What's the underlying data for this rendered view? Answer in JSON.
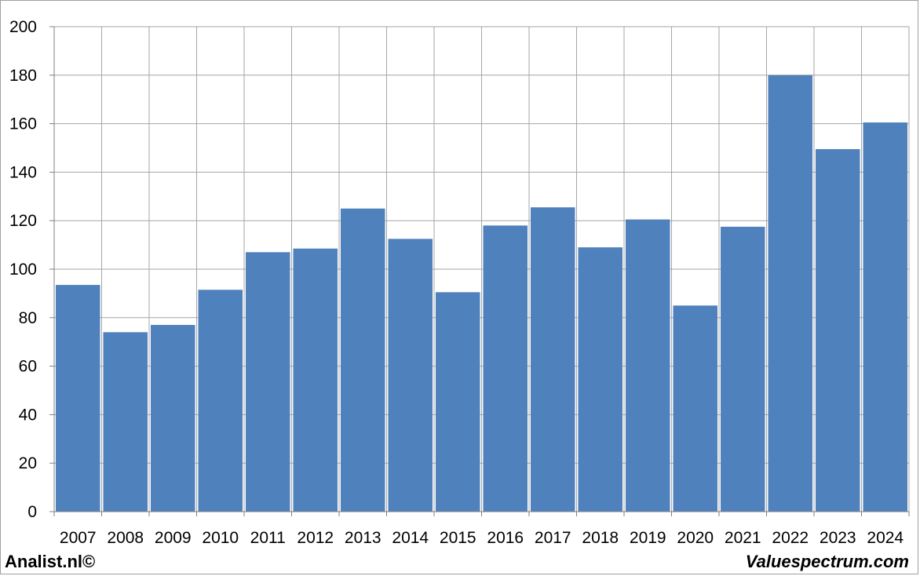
{
  "footer": {
    "left_text": "Analist.nl©",
    "right_text": "Valuespectrum.com"
  },
  "colors": {
    "bar": "#4f81bd",
    "grid": "#a6a6a6",
    "axis": "#808080"
  },
  "chart_data": {
    "type": "bar",
    "categories": [
      "2007",
      "2008",
      "2009",
      "2010",
      "2011",
      "2012",
      "2013",
      "2014",
      "2015",
      "2016",
      "2017",
      "2018",
      "2019",
      "2020",
      "2021",
      "2022",
      "2023",
      "2024"
    ],
    "values": [
      93.5,
      74,
      77,
      91.5,
      107,
      108.5,
      125,
      112.5,
      90.5,
      118,
      125.5,
      109,
      120.5,
      85,
      117.5,
      180,
      149.5,
      160.5
    ],
    "title": "",
    "xlabel": "",
    "ylabel": "",
    "ylim": [
      0,
      200
    ],
    "yticks": [
      0,
      20,
      40,
      60,
      80,
      100,
      120,
      140,
      160,
      180,
      200
    ],
    "grid": true,
    "legend": "none"
  }
}
